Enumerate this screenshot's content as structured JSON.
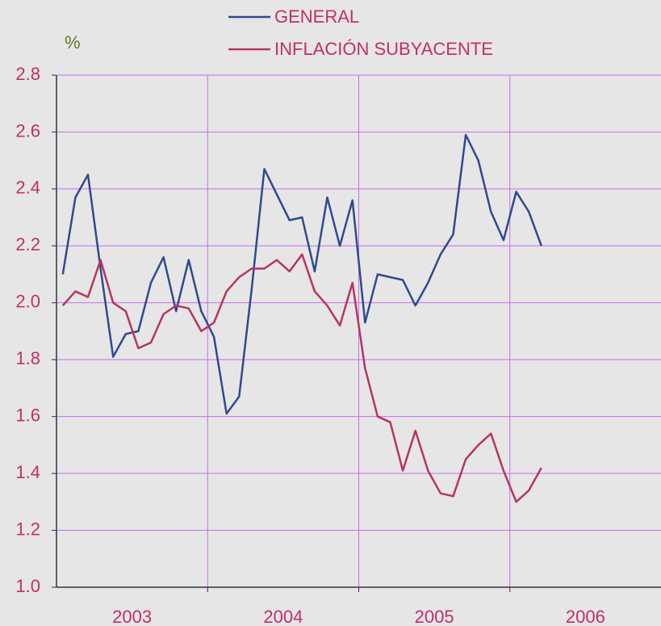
{
  "chart_data": {
    "type": "line",
    "y_label": "%",
    "categories": [
      "2003",
      null,
      null,
      null,
      null,
      null,
      null,
      null,
      null,
      null,
      null,
      null,
      "2004",
      null,
      null,
      null,
      null,
      null,
      null,
      null,
      null,
      null,
      null,
      null,
      "2005",
      null,
      null,
      null,
      null,
      null,
      null,
      null,
      null,
      null,
      null,
      null,
      "2006",
      null,
      null,
      null,
      null,
      null,
      null,
      null,
      null,
      null,
      null,
      null
    ],
    "series": [
      {
        "name": "GENERAL",
        "color": "#2f4a8e",
        "values": [
          2.1,
          2.37,
          2.45,
          2.12,
          1.81,
          1.89,
          1.9,
          2.07,
          2.16,
          1.97,
          2.15,
          1.97,
          1.88,
          1.61,
          1.67,
          2.05,
          2.47,
          2.38,
          2.29,
          2.3,
          2.11,
          2.37,
          2.2,
          2.36,
          1.93,
          2.1,
          2.09,
          2.08,
          1.99,
          2.07,
          2.17,
          2.24,
          2.59,
          2.5,
          2.32,
          2.22,
          2.39,
          2.32,
          2.2,
          null,
          null,
          null,
          null,
          null,
          null,
          null,
          null,
          null
        ]
      },
      {
        "name": "INFLACIÓN SUBYACENTE",
        "color": "#b5365f",
        "values": [
          1.99,
          2.04,
          2.02,
          2.15,
          2.0,
          1.97,
          1.84,
          1.86,
          1.96,
          1.99,
          1.98,
          1.9,
          1.93,
          2.04,
          2.09,
          2.12,
          2.12,
          2.15,
          2.11,
          2.17,
          2.04,
          1.99,
          1.92,
          2.07,
          1.77,
          1.6,
          1.58,
          1.41,
          1.55,
          1.41,
          1.33,
          1.32,
          1.45,
          1.5,
          1.54,
          1.41,
          1.3,
          1.34,
          1.42,
          null,
          null,
          null,
          null,
          null,
          null,
          null,
          null,
          null
        ]
      }
    ],
    "ylim": [
      1.0,
      2.8
    ],
    "yticks": [
      {
        "value": 1.0,
        "label": "1.0"
      },
      {
        "value": 1.2,
        "label": "1.2"
      },
      {
        "value": 1.4,
        "label": "1.4"
      },
      {
        "value": 1.6,
        "label": "1.6"
      },
      {
        "value": 1.8,
        "label": "1.8"
      },
      {
        "value": 2.0,
        "label": "2.0"
      },
      {
        "value": 2.2,
        "label": "2.2"
      },
      {
        "value": 2.4,
        "label": "2.4"
      },
      {
        "value": 2.6,
        "label": "2.6"
      },
      {
        "value": 2.8,
        "label": "2.8"
      }
    ],
    "grid": true,
    "grid_color": "#c56cf0",
    "legend": "top"
  }
}
